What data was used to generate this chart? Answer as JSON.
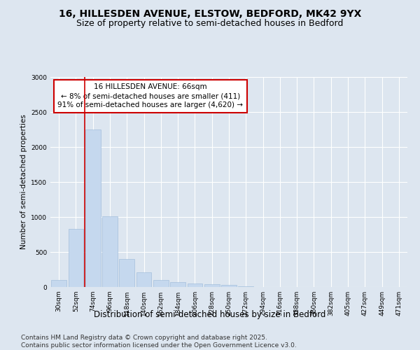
{
  "title1": "16, HILLESDEN AVENUE, ELSTOW, BEDFORD, MK42 9YX",
  "title2": "Size of property relative to semi-detached houses in Bedford",
  "xlabel": "Distribution of semi-detached houses by size in Bedford",
  "ylabel": "Number of semi-detached properties",
  "categories": [
    "30sqm",
    "52sqm",
    "74sqm",
    "96sqm",
    "118sqm",
    "140sqm",
    "162sqm",
    "184sqm",
    "206sqm",
    "228sqm",
    "250sqm",
    "272sqm",
    "294sqm",
    "316sqm",
    "338sqm",
    "360sqm",
    "382sqm",
    "405sqm",
    "427sqm",
    "449sqm",
    "471sqm"
  ],
  "values": [
    100,
    830,
    2250,
    1010,
    400,
    210,
    105,
    75,
    55,
    45,
    30,
    15,
    5,
    3,
    1,
    0,
    1,
    0,
    0,
    0,
    0
  ],
  "bar_color": "#c5d8ee",
  "bar_edge_color": "#9ab8d8",
  "vline_color": "#cc0000",
  "annotation_title": "16 HILLESDEN AVENUE: 66sqm",
  "annotation_line1": "← 8% of semi-detached houses are smaller (411)",
  "annotation_line2": "91% of semi-detached houses are larger (4,620) →",
  "annotation_box_color": "#ffffff",
  "annotation_box_edge": "#cc0000",
  "ylim": [
    0,
    3000
  ],
  "yticks": [
    0,
    500,
    1000,
    1500,
    2000,
    2500,
    3000
  ],
  "bg_color": "#dde6f0",
  "plot_bg_color": "#dde6f0",
  "footer1": "Contains HM Land Registry data © Crown copyright and database right 2025.",
  "footer2": "Contains public sector information licensed under the Open Government Licence v3.0.",
  "title1_fontsize": 10,
  "title2_fontsize": 9,
  "xlabel_fontsize": 8.5,
  "ylabel_fontsize": 7.5,
  "tick_fontsize": 6.5,
  "annotation_fontsize": 7.5,
  "footer_fontsize": 6.5
}
